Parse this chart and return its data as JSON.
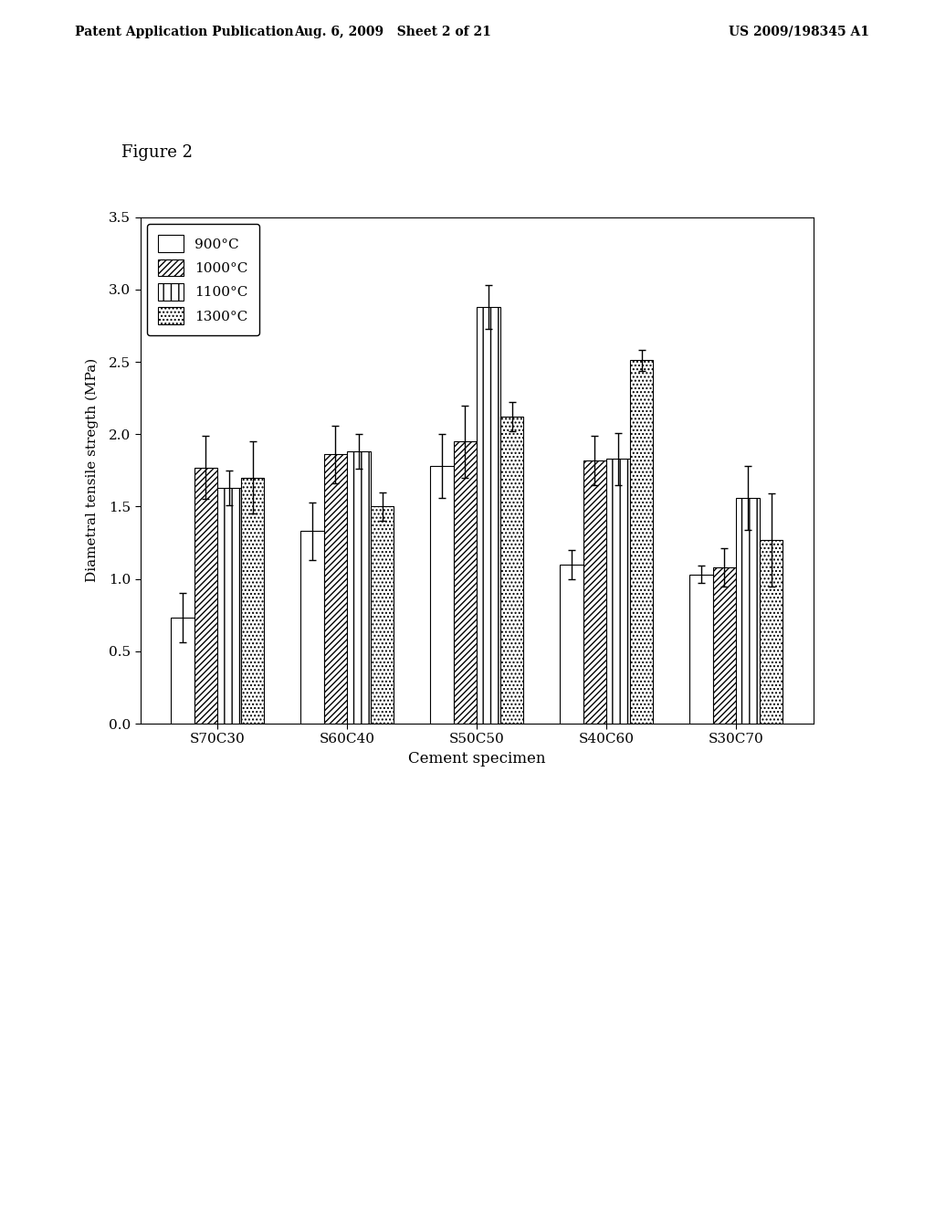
{
  "categories": [
    "S70C30",
    "S60C40",
    "S50C50",
    "S40C60",
    "S30C70"
  ],
  "series_labels": [
    "900°C",
    "1000°C",
    "1100°C",
    "1300°C"
  ],
  "values": {
    "900C": [
      0.73,
      1.33,
      1.78,
      1.1,
      1.03
    ],
    "1000C": [
      1.77,
      1.86,
      1.95,
      1.82,
      1.08
    ],
    "1100C": [
      1.63,
      1.88,
      2.88,
      1.83,
      1.56
    ],
    "1300C": [
      1.7,
      1.5,
      2.12,
      2.51,
      1.27
    ]
  },
  "errors": {
    "900C": [
      0.17,
      0.2,
      0.22,
      0.1,
      0.06
    ],
    "1000C": [
      0.22,
      0.2,
      0.25,
      0.17,
      0.13
    ],
    "1100C": [
      0.12,
      0.12,
      0.15,
      0.18,
      0.22
    ],
    "1300C": [
      0.25,
      0.1,
      0.1,
      0.07,
      0.32
    ]
  },
  "xlabel": "Cement specimen",
  "ylabel": "Diametral tensile stregth (MPa)",
  "ylim": [
    0.0,
    3.5
  ],
  "yticks": [
    0.0,
    0.5,
    1.0,
    1.5,
    2.0,
    2.5,
    3.0,
    3.5
  ],
  "figure_label": "Figure 2",
  "header_left": "Patent Application Publication",
  "header_center": "Aug. 6, 2009   Sheet 2 of 21",
  "header_right": "US 2009/198345 A1",
  "background_color": "#ffffff",
  "bar_width": 0.18
}
